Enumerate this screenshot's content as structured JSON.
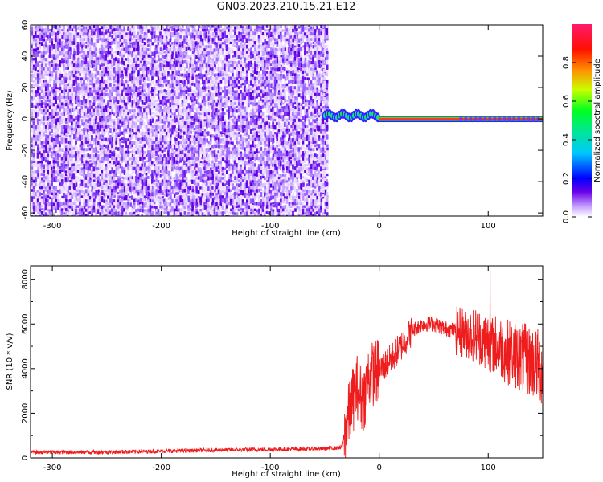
{
  "title": "GN03.2023.210.15.21.E12",
  "chart_data": [
    {
      "type": "heatmap",
      "title": "GN03.2023.210.15.21.E12",
      "xlabel": "Height of straight line (km)",
      "ylabel": "Frequency (Hz)",
      "xlim": [
        -320,
        150
      ],
      "ylim": [
        -62,
        60
      ],
      "xticks": [
        -300,
        -200,
        -100,
        0,
        100
      ],
      "yticks": [
        60,
        40,
        20,
        0,
        -20,
        -40,
        -60
      ],
      "noise_region_x": [
        -320,
        -50
      ],
      "signal_region_x": [
        -50,
        150
      ],
      "signal_frequency_hz": 0,
      "colorbar": {
        "label": "Normalized spectral amplitude",
        "range": [
          0.0,
          1.0
        ],
        "ticks": [
          0.0,
          0.2,
          0.4,
          0.6,
          0.8
        ],
        "tick_labels": [
          "0.0",
          "0.2",
          "0.4",
          "0.6",
          "0.8"
        ],
        "colors": [
          "#ffffff",
          "#6a00e8",
          "#0000ff",
          "#00c8ff",
          "#00ff40",
          "#c8ff00",
          "#ff8000",
          "#ff0000",
          "#ff1a6e"
        ]
      }
    },
    {
      "type": "line",
      "xlabel": "Height of straight line (km)",
      "ylabel": "SNR (10 * v/v)",
      "xlim": [
        -320,
        150
      ],
      "ylim": [
        0,
        8600
      ],
      "xticks": [
        -300,
        -200,
        -100,
        0,
        100
      ],
      "yticks": [
        0,
        2000,
        4000,
        6000,
        8000
      ],
      "color": "#ee1c1c",
      "series": [
        {
          "x": [
            -320,
            -250,
            -200,
            -150,
            -100,
            -50,
            -35,
            -30,
            -25,
            -20,
            -15,
            -10,
            -5,
            0,
            10,
            20,
            30,
            40,
            50,
            60,
            70,
            80,
            90,
            100,
            110,
            120,
            130,
            140,
            150
          ],
          "values": [
            250,
            260,
            300,
            350,
            380,
            420,
            450,
            1500,
            2500,
            3200,
            2500,
            3600,
            3800,
            3900,
            4400,
            5000,
            5700,
            6000,
            6000,
            5800,
            5700,
            5600,
            5500,
            5200,
            5000,
            4700,
            4500,
            4300,
            4000
          ]
        }
      ]
    }
  ]
}
